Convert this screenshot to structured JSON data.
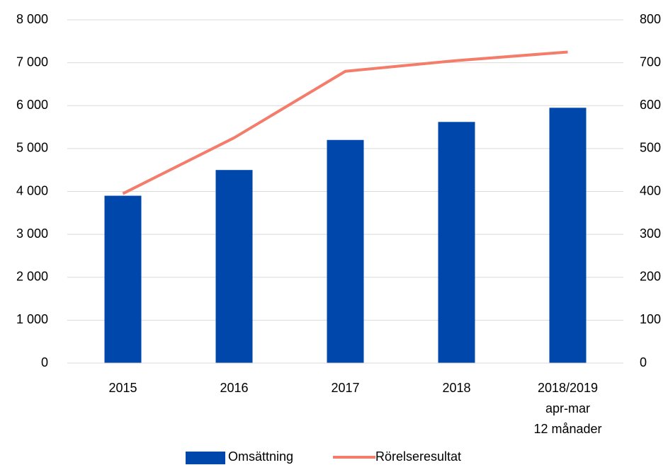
{
  "chart_data": {
    "type": "bar",
    "categories": [
      "2015",
      "2016",
      "2017",
      "2018",
      "2018/2019\napr-mar\n12 månader"
    ],
    "series": [
      {
        "name": "Omsättning",
        "type": "bar",
        "color": "#0047ab",
        "values": [
          3900,
          4500,
          5200,
          5620,
          5950
        ]
      },
      {
        "name": "Rörelseresultat",
        "type": "line",
        "axis": "y2",
        "color": "#f47c6a",
        "values": [
          395,
          525,
          680,
          705,
          725
        ]
      }
    ],
    "ylim": [
      0,
      8000
    ],
    "yticks": [
      0,
      {
        "value": 1000,
        "label": "1 000"
      },
      {
        "value": 2000,
        "label": "2 000"
      },
      {
        "value": 3000,
        "label": "3 000"
      },
      {
        "value": 4000,
        "label": "4 000"
      },
      {
        "value": 5000,
        "label": "5 000"
      },
      {
        "value": 6000,
        "label": "6 000"
      },
      {
        "value": 7000,
        "label": "7 000"
      },
      {
        "value": 8000,
        "label": "8 000"
      }
    ],
    "y2lim": [
      0,
      800
    ],
    "y2ticks": [
      0,
      100,
      200,
      300,
      400,
      500,
      600,
      700,
      800
    ],
    "grid": true,
    "legend": "bottom"
  }
}
